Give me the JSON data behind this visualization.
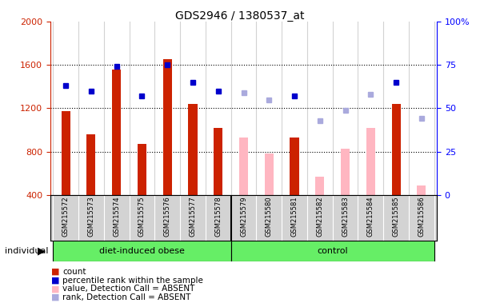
{
  "title": "GDS2946 / 1380537_at",
  "samples": [
    "GSM215572",
    "GSM215573",
    "GSM215574",
    "GSM215575",
    "GSM215576",
    "GSM215577",
    "GSM215578",
    "GSM215579",
    "GSM215580",
    "GSM215581",
    "GSM215582",
    "GSM215583",
    "GSM215584",
    "GSM215585",
    "GSM215586"
  ],
  "groups": [
    "diet-induced obese",
    "diet-induced obese",
    "diet-induced obese",
    "diet-induced obese",
    "diet-induced obese",
    "diet-induced obese",
    "diet-induced obese",
    "control",
    "control",
    "control",
    "control",
    "control",
    "control",
    "control",
    "control"
  ],
  "count_values": [
    1175,
    960,
    1560,
    870,
    1650,
    1240,
    1020,
    null,
    null,
    930,
    null,
    null,
    null,
    1240,
    null
  ],
  "absent_values": [
    null,
    null,
    null,
    null,
    null,
    null,
    null,
    930,
    785,
    null,
    570,
    830,
    1020,
    null,
    490
  ],
  "percentile_present": [
    63,
    60,
    74,
    57,
    75,
    65,
    60,
    null,
    null,
    57,
    null,
    null,
    null,
    65,
    null
  ],
  "percentile_absent": [
    null,
    null,
    null,
    null,
    null,
    null,
    null,
    59,
    55,
    null,
    43,
    49,
    58,
    null,
    44
  ],
  "bar_color_present": "#cc2200",
  "bar_color_absent": "#ffb6c1",
  "dot_color_present": "#0000cc",
  "dot_color_absent": "#aaaadd",
  "ylim_left": [
    400,
    2000
  ],
  "ylim_right": [
    0,
    100
  ],
  "yticks_left": [
    400,
    800,
    1200,
    1600,
    2000
  ],
  "yticks_right": [
    0,
    25,
    50,
    75,
    100
  ],
  "ytick_labels_right": [
    "0",
    "25",
    "50",
    "75",
    "100%"
  ],
  "group_boundary": 7,
  "background_color": "#d3d3d3",
  "group1_label": "diet-induced obese",
  "group2_label": "control",
  "green_color": "#66ee66"
}
